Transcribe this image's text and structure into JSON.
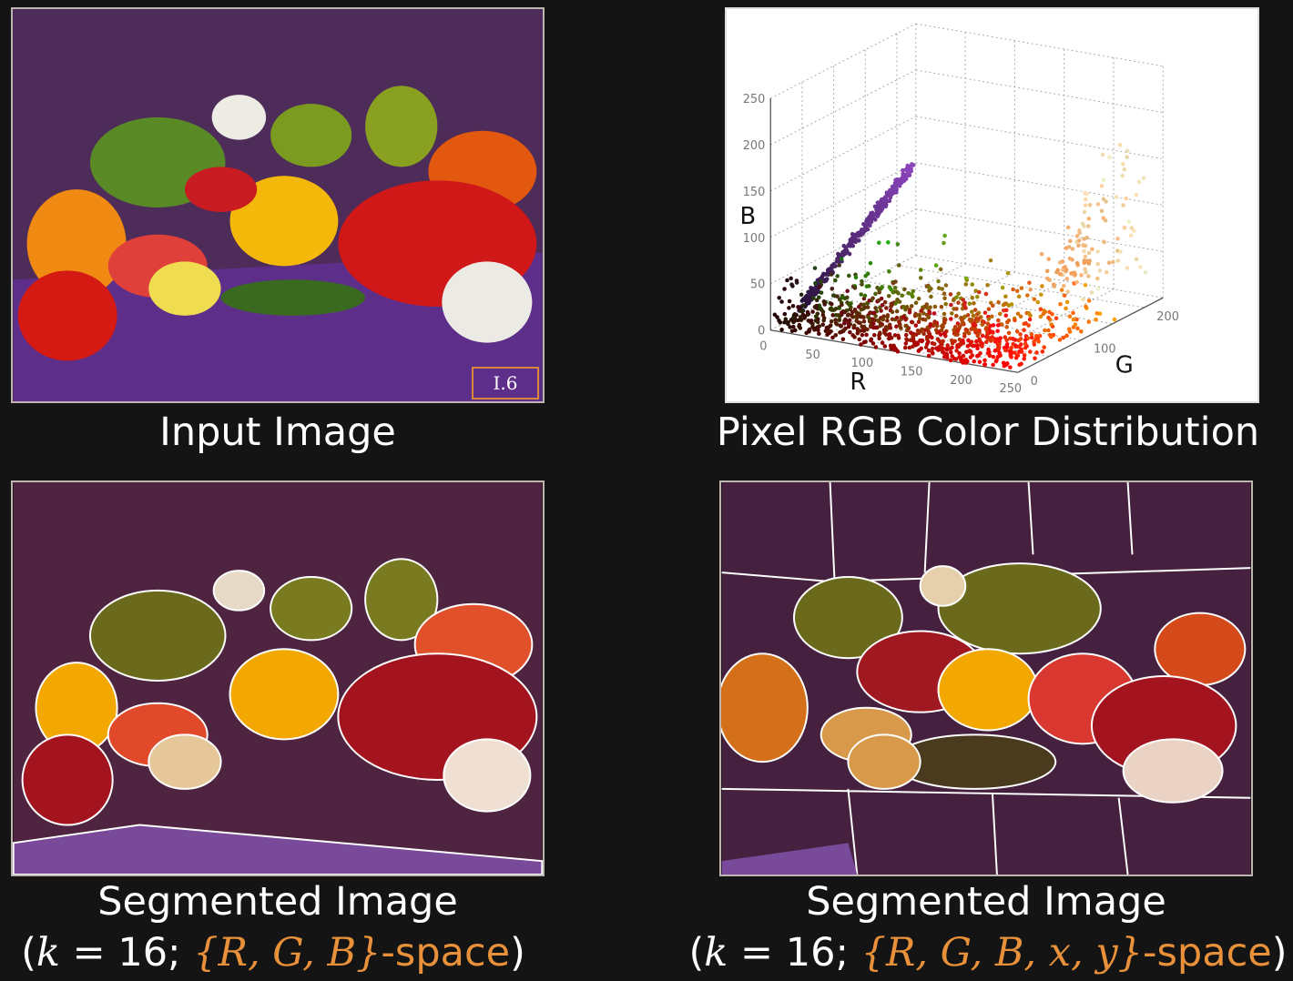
{
  "panels": {
    "input": {
      "caption": "Input Image",
      "badge": "I.6"
    },
    "distribution": {
      "caption": "Pixel RGB Color Distribution"
    },
    "segmented_rgb": {
      "caption_line1": "Segmented Image",
      "open": "(",
      "k_var": "k",
      "k_eq": " = 16; ",
      "space": "{R, G, B}",
      "suffix": "-space",
      "close": ")"
    },
    "segmented_rgbxy": {
      "caption_line1": "Segmented Image",
      "open": "(",
      "k_var": "k",
      "k_eq": " = 16; ",
      "space": "{R, G, B, x, y}",
      "suffix": "-space",
      "close": ")"
    }
  },
  "colors": {
    "background": "#141414",
    "highlight": "#e8913a",
    "purple_bg": "#4a2a55",
    "segment_bg": "#4e2440"
  },
  "chart_data": {
    "type": "scatter",
    "projection": "3d",
    "xlabel": "R",
    "ylabel": "G",
    "zlabel": "B",
    "x_ticks": [
      "0",
      "50",
      "100",
      "150",
      "200",
      "250"
    ],
    "y_ticks": [
      "0",
      "100",
      "200"
    ],
    "z_ticks": [
      "0",
      "50",
      "100",
      "150",
      "200",
      "250"
    ],
    "xlim": [
      0,
      250
    ],
    "ylim": [
      0,
      230
    ],
    "zlim": [
      0,
      250
    ],
    "grid": true,
    "point_color": "pixel RGB value"
  }
}
